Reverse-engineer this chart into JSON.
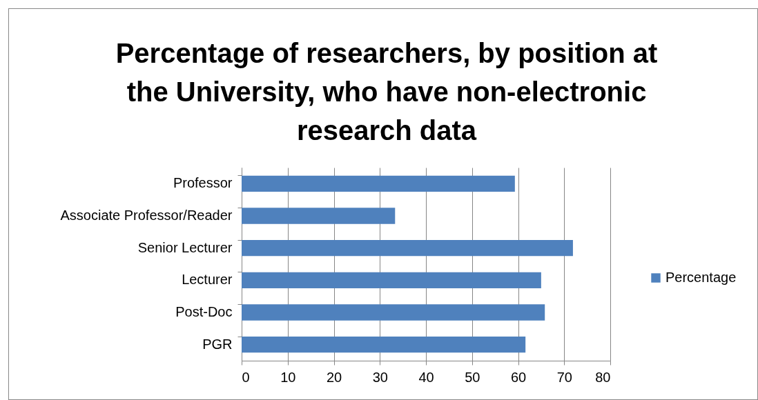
{
  "chart_data": {
    "type": "bar",
    "orientation": "horizontal",
    "title": "Percentage of researchers, by position at the University, who have non-electronic research data",
    "categories": [
      "Professor",
      "Associate Professor/Reader",
      "Senior Lecturer",
      "Lecturer",
      "Post-Doc",
      "PGR"
    ],
    "series": [
      {
        "name": "Percentage",
        "color": "#4f81bd",
        "values": [
          59.3,
          33.3,
          71.9,
          65.0,
          65.8,
          61.6
        ]
      }
    ],
    "xlim": [
      0,
      80
    ],
    "xticks": [
      0,
      10,
      20,
      30,
      40,
      50,
      60,
      70,
      80
    ],
    "grid": "x",
    "legend": "right"
  }
}
